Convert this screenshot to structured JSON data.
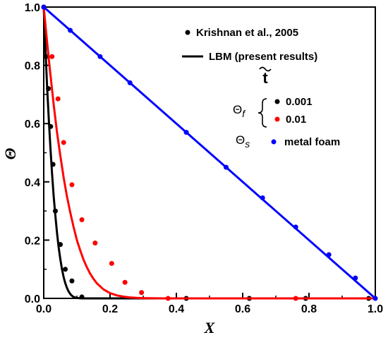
{
  "chart_data": {
    "type": "line",
    "xlabel": "X",
    "ylabel": "Θ",
    "xlim": [
      0,
      1
    ],
    "ylim": [
      0,
      1
    ],
    "xticks": [
      "0.0",
      "0.2",
      "0.4",
      "0.6",
      "0.8",
      "1.0"
    ],
    "yticks": [
      "0.0",
      "0.2",
      "0.4",
      "0.6",
      "0.8",
      "1.0"
    ],
    "grid": false,
    "legend_position": "top-right",
    "legend": {
      "symbol_entry": "Krishnan et al., 2005",
      "line_entry": "LBM (present results)",
      "time_header": "t",
      "fluid_label": "Θ",
      "fluid_sub": "f",
      "solid_label": "Θ",
      "solid_sub": "s"
    },
    "series": [
      {
        "name": "0.001",
        "color": "#000000",
        "line": {
          "x": [
            0,
            0.005,
            0.01,
            0.015,
            0.02,
            0.025,
            0.03,
            0.035,
            0.04,
            0.045,
            0.05,
            0.055,
            0.06,
            0.065,
            0.07,
            0.075,
            0.08,
            0.085,
            0.09,
            0.095,
            0.1,
            0.105,
            0.11,
            0.115,
            0.12,
            0.13,
            1.0
          ],
          "y": [
            1.0,
            0.86,
            0.73,
            0.62,
            0.52,
            0.43,
            0.35,
            0.285,
            0.225,
            0.175,
            0.135,
            0.1,
            0.073,
            0.052,
            0.036,
            0.024,
            0.015,
            0.009,
            0.005,
            0.003,
            0.0015,
            0.0008,
            0.0004,
            0.0002,
            0.0001,
            0,
            0
          ]
        },
        "points": {
          "x": [
            0.0,
            0.007,
            0.014,
            0.021,
            0.028,
            0.035,
            0.05,
            0.065,
            0.085,
            0.115,
            0.43,
            0.62,
            0.79,
            0.98
          ],
          "y": [
            1.0,
            0.83,
            0.72,
            0.59,
            0.46,
            0.3,
            0.185,
            0.1,
            0.06,
            0.005,
            0.0,
            0.0,
            0.0,
            0.0
          ]
        }
      },
      {
        "name": "0.01",
        "color": "#ff0000",
        "line": {
          "x": [
            0,
            0.01,
            0.02,
            0.03,
            0.04,
            0.05,
            0.06,
            0.07,
            0.08,
            0.09,
            0.1,
            0.11,
            0.12,
            0.13,
            0.14,
            0.15,
            0.16,
            0.18,
            0.2,
            0.22,
            0.24,
            0.26,
            0.28,
            0.3,
            0.32,
            0.34,
            0.36,
            0.38,
            0.4,
            1.0
          ],
          "y": [
            1.0,
            0.88,
            0.77,
            0.665,
            0.57,
            0.49,
            0.415,
            0.35,
            0.295,
            0.245,
            0.2,
            0.165,
            0.133,
            0.107,
            0.085,
            0.067,
            0.052,
            0.031,
            0.018,
            0.0105,
            0.006,
            0.0033,
            0.0018,
            0.001,
            0.0005,
            0.0002,
            0.0001,
            0,
            0,
            0
          ]
        },
        "points": {
          "x": [
            0.0,
            0.025,
            0.043,
            0.06,
            0.085,
            0.115,
            0.155,
            0.205,
            0.245,
            0.295,
            0.375,
            0.76
          ],
          "y": [
            1.0,
            0.83,
            0.685,
            0.535,
            0.39,
            0.27,
            0.19,
            0.12,
            0.055,
            0.02,
            0.0,
            0.0
          ]
        }
      },
      {
        "name": "metal foam",
        "color": "#0000ff",
        "line": {
          "x": [
            0,
            1.0
          ],
          "y": [
            1.0,
            0.0
          ]
        },
        "points": {
          "x": [
            0.0,
            0.08,
            0.17,
            0.26,
            0.43,
            0.55,
            0.66,
            0.76,
            0.86,
            0.94,
            1.0
          ],
          "y": [
            1.0,
            0.92,
            0.83,
            0.74,
            0.57,
            0.45,
            0.345,
            0.245,
            0.15,
            0.07,
            0.0
          ]
        }
      }
    ]
  }
}
